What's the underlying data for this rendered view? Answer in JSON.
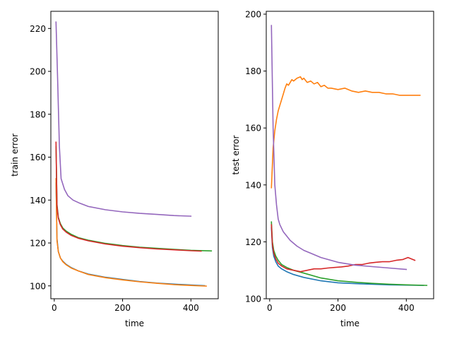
{
  "chart_data": [
    {
      "type": "line",
      "name": "train",
      "xlabel": "time",
      "ylabel": "train error",
      "xlim": [
        -10,
        480
      ],
      "ylim": [
        94,
        228
      ],
      "xticks": [
        0,
        200,
        400
      ],
      "yticks": [
        100,
        120,
        140,
        160,
        180,
        200,
        220
      ],
      "series": [
        {
          "name": "series-1",
          "color": "#1f77b4",
          "x": [
            5,
            8,
            12,
            18,
            25,
            35,
            50,
            70,
            100,
            150,
            200,
            250,
            300,
            350,
            400,
            440
          ],
          "y": [
            148,
            122,
            116,
            113,
            111.5,
            110,
            108.5,
            107,
            105.5,
            104,
            103,
            102,
            101.3,
            100.8,
            100.4,
            100.1
          ]
        },
        {
          "name": "series-2",
          "color": "#ff7f0e",
          "x": [
            5,
            8,
            12,
            18,
            25,
            35,
            50,
            70,
            100,
            150,
            200,
            250,
            300,
            350,
            400,
            445
          ],
          "y": [
            150,
            121,
            116,
            113,
            111.3,
            109.8,
            108.3,
            107,
            105.3,
            103.8,
            102.8,
            101.9,
            101.2,
            100.6,
            100.2,
            99.9
          ]
        },
        {
          "name": "series-3",
          "color": "#2ca02c",
          "x": [
            5,
            8,
            12,
            18,
            25,
            35,
            50,
            70,
            100,
            150,
            200,
            250,
            300,
            350,
            400,
            460
          ],
          "y": [
            165,
            138,
            132,
            129,
            127,
            125.5,
            124,
            122.5,
            121.3,
            119.8,
            118.8,
            118,
            117.5,
            117,
            116.6,
            116.3
          ]
        },
        {
          "name": "series-4",
          "color": "#d62728",
          "x": [
            5,
            8,
            12,
            18,
            25,
            35,
            50,
            70,
            100,
            150,
            200,
            250,
            300,
            350,
            400,
            430
          ],
          "y": [
            167,
            137,
            131.5,
            128.5,
            126.5,
            125,
            123.5,
            122.2,
            121,
            119.5,
            118.5,
            117.8,
            117.2,
            116.8,
            116.4,
            116.2
          ]
        },
        {
          "name": "series-5",
          "color": "#9467bd",
          "x": [
            5,
            10,
            15,
            20,
            30,
            40,
            55,
            75,
            100,
            150,
            200,
            250,
            300,
            350,
            400
          ],
          "y": [
            223,
            195,
            165,
            150,
            145,
            142,
            140,
            138.5,
            137,
            135.5,
            134.5,
            133.8,
            133.3,
            132.8,
            132.5
          ]
        }
      ]
    },
    {
      "type": "line",
      "name": "test",
      "xlabel": "time",
      "ylabel": "test error",
      "xlim": [
        -10,
        480
      ],
      "ylim": [
        100,
        201
      ],
      "xticks": [
        0,
        200,
        400
      ],
      "yticks": [
        100,
        120,
        140,
        160,
        180,
        200
      ],
      "series": [
        {
          "name": "series-1",
          "color": "#1f77b4",
          "x": [
            5,
            8,
            12,
            18,
            25,
            35,
            50,
            70,
            100,
            150,
            200,
            250,
            300,
            350,
            400,
            450
          ],
          "y": [
            125,
            118,
            115,
            113,
            111.5,
            110.5,
            109.5,
            108.5,
            107.5,
            106.3,
            105.6,
            105.3,
            105.1,
            104.9,
            104.8,
            104.7
          ]
        },
        {
          "name": "series-2",
          "color": "#ff7f0e",
          "x": [
            5,
            10,
            15,
            20,
            25,
            30,
            35,
            40,
            45,
            50,
            55,
            60,
            65,
            70,
            80,
            90,
            95,
            100,
            110,
            120,
            130,
            140,
            150,
            160,
            170,
            180,
            200,
            220,
            240,
            260,
            280,
            300,
            320,
            340,
            360,
            380,
            400,
            420,
            440
          ],
          "y": [
            139,
            153,
            159,
            163,
            166,
            168,
            170,
            172,
            174,
            175.5,
            175,
            176,
            177,
            176.5,
            177.5,
            178,
            177,
            177.5,
            176,
            176.5,
            175.5,
            176,
            174.5,
            175,
            174,
            174,
            173.5,
            174,
            173,
            172.5,
            173,
            172.5,
            172.5,
            172,
            172,
            171.5,
            171.5,
            171.5,
            171.5
          ]
        },
        {
          "name": "series-3",
          "color": "#2ca02c",
          "x": [
            5,
            8,
            12,
            18,
            25,
            35,
            50,
            70,
            100,
            150,
            200,
            250,
            300,
            350,
            400,
            460
          ],
          "y": [
            127,
            120,
            117,
            115,
            113.5,
            112,
            111,
            110,
            109,
            107.3,
            106.3,
            105.8,
            105.4,
            105.1,
            104.9,
            104.7
          ]
        },
        {
          "name": "series-4",
          "color": "#d62728",
          "x": [
            5,
            8,
            12,
            18,
            25,
            35,
            50,
            70,
            90,
            110,
            130,
            150,
            170,
            190,
            210,
            230,
            250,
            270,
            290,
            310,
            330,
            350,
            370,
            390,
            405,
            415,
            425
          ],
          "y": [
            126,
            119,
            116,
            114,
            112.5,
            111.5,
            110.5,
            110,
            109.5,
            110,
            110.5,
            110.5,
            110.8,
            111,
            111.2,
            111.5,
            112,
            112,
            112.5,
            112.8,
            113,
            113,
            113.5,
            113.8,
            114.5,
            114,
            113.5
          ]
        },
        {
          "name": "series-5",
          "color": "#9467bd",
          "x": [
            5,
            10,
            15,
            20,
            25,
            30,
            40,
            50,
            60,
            80,
            100,
            120,
            150,
            200,
            250,
            300,
            350,
            400
          ],
          "y": [
            196,
            160,
            140,
            133,
            128,
            126,
            123.5,
            122,
            120.5,
            118.5,
            117,
            116,
            114.5,
            112.8,
            111.8,
            111.3,
            110.8,
            110.3
          ]
        }
      ]
    }
  ]
}
